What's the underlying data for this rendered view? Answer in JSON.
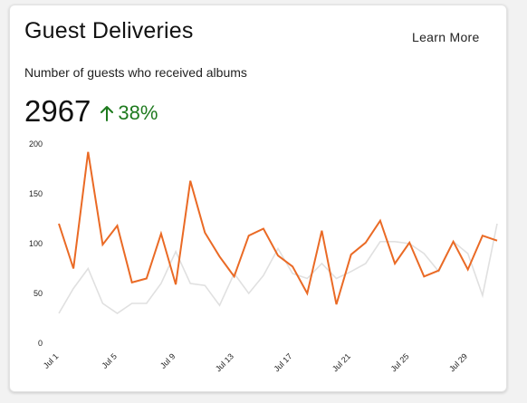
{
  "card": {
    "title": "Guest Deliveries",
    "learn_more": "Learn More",
    "subtitle": "Number of guests who received albums",
    "metric_value": "2967",
    "metric_change": "38%"
  },
  "colors": {
    "primary_series": "#ea6a25",
    "comparison_series": "#e0e0e0",
    "positive": "#1e7a1e"
  },
  "icons": {
    "change": "arrow-up-icon"
  },
  "chart_data": {
    "type": "line",
    "x": [
      1,
      2,
      3,
      4,
      5,
      6,
      7,
      8,
      9,
      10,
      11,
      12,
      13,
      14,
      15,
      16,
      17,
      18,
      19,
      20,
      21,
      22,
      23,
      24,
      25,
      26,
      27,
      28,
      29,
      30,
      31
    ],
    "x_tick_labels": [
      {
        "x": 1,
        "label": "Jul 1"
      },
      {
        "x": 5,
        "label": "Jul 5"
      },
      {
        "x": 9,
        "label": "Jul 9"
      },
      {
        "x": 13,
        "label": "Jul 13"
      },
      {
        "x": 17,
        "label": "Jul 17"
      },
      {
        "x": 21,
        "label": "Jul 21"
      },
      {
        "x": 25,
        "label": "Jul 25"
      },
      {
        "x": 29,
        "label": "Jul 29"
      }
    ],
    "y_ticks": [
      0,
      50,
      100,
      150,
      200
    ],
    "ylim": [
      0,
      200
    ],
    "grid": false,
    "series": [
      {
        "role": "current",
        "values": [
          120,
          75,
          192,
          99,
          118,
          61,
          65,
          110,
          59,
          163,
          111,
          87,
          67,
          108,
          115,
          88,
          77,
          50,
          113,
          39,
          89,
          101,
          123,
          80,
          101,
          67,
          73,
          102,
          74,
          108,
          103
        ]
      },
      {
        "role": "previous",
        "values": [
          30,
          55,
          75,
          40,
          30,
          40,
          40,
          60,
          92,
          60,
          58,
          38,
          70,
          50,
          68,
          95,
          70,
          65,
          80,
          65,
          72,
          80,
          102,
          102,
          100,
          90,
          72,
          102,
          90,
          48,
          120
        ]
      }
    ]
  }
}
